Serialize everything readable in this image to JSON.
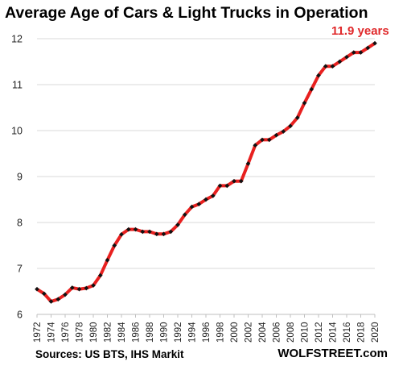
{
  "chart_data": {
    "type": "line",
    "title": "Average Age of Cars & Light Trucks in Operation",
    "annotation": "11.9 years",
    "source": "Sources: US BTS, IHS Markit",
    "brand": "WOLFSTREET.com",
    "xlabel": "",
    "ylabel": "",
    "ylim": [
      6,
      12
    ],
    "yticks": [
      6,
      7,
      8,
      9,
      10,
      11,
      12
    ],
    "xlim": [
      1972,
      2020
    ],
    "xticks": [
      1972,
      1974,
      1976,
      1978,
      1980,
      1982,
      1984,
      1986,
      1988,
      1990,
      1992,
      1994,
      1996,
      1998,
      2000,
      2002,
      2004,
      2006,
      2008,
      2010,
      2012,
      2014,
      2016,
      2018,
      2020
    ],
    "grid": "horizontal",
    "line_color": "#e8201f",
    "marker_color": "#111111",
    "annotation_color": "#e0292b",
    "x": [
      1972,
      1973,
      1974,
      1975,
      1976,
      1977,
      1978,
      1979,
      1980,
      1981,
      1982,
      1983,
      1984,
      1985,
      1986,
      1987,
      1988,
      1989,
      1990,
      1991,
      1992,
      1993,
      1994,
      1995,
      1996,
      1997,
      1998,
      1999,
      2000,
      2001,
      2002,
      2003,
      2004,
      2005,
      2006,
      2007,
      2008,
      2009,
      2010,
      2011,
      2012,
      2013,
      2014,
      2015,
      2016,
      2017,
      2018,
      2019,
      2020
    ],
    "values": [
      6.55,
      6.45,
      6.28,
      6.33,
      6.43,
      6.58,
      6.55,
      6.57,
      6.63,
      6.85,
      7.18,
      7.5,
      7.74,
      7.85,
      7.85,
      7.8,
      7.8,
      7.75,
      7.75,
      7.8,
      7.95,
      8.17,
      8.34,
      8.4,
      8.5,
      8.58,
      8.8,
      8.8,
      8.9,
      8.9,
      9.28,
      9.68,
      9.8,
      9.8,
      9.9,
      9.98,
      10.1,
      10.28,
      10.6,
      10.9,
      11.2,
      11.4,
      11.4,
      11.5,
      11.6,
      11.7,
      11.7,
      11.8,
      11.9
    ]
  }
}
